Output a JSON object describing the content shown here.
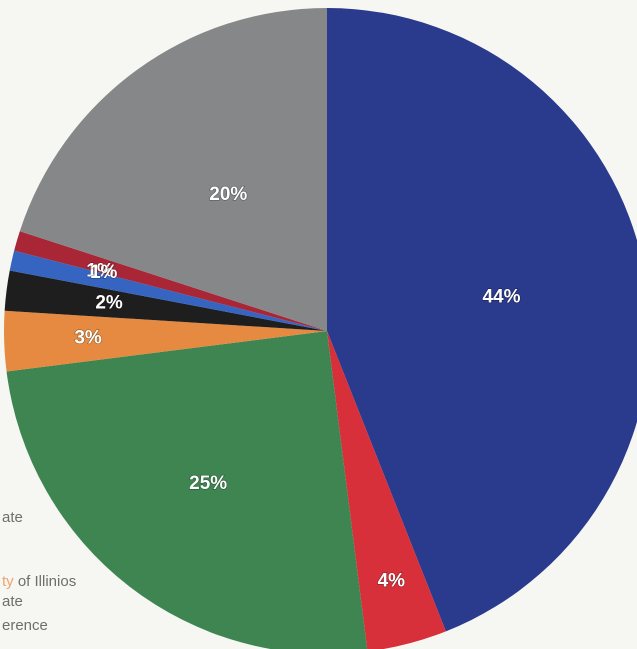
{
  "chart_data": {
    "type": "pie",
    "start_angle_deg": 0,
    "direction": "clockwise",
    "slices": [
      {
        "label": "44%",
        "value": 44,
        "color": "#2a3a8c"
      },
      {
        "label": "4%",
        "value": 4,
        "color": "#d8303a"
      },
      {
        "label": "25%",
        "value": 25,
        "color": "#3e8552"
      },
      {
        "label": "3%",
        "value": 3,
        "color": "#e58a40"
      },
      {
        "label": "2%",
        "value": 2,
        "color": "#1e1e1e"
      },
      {
        "label": "1%",
        "value": 1,
        "color": "#3565c0"
      },
      {
        "label": "1%",
        "value": 1,
        "color": "#a82636"
      },
      {
        "label": "20%",
        "value": 20,
        "color": "#858789"
      }
    ],
    "legend_fragments": [
      "ate",
      "ty of Illinios",
      "ate",
      "erence"
    ],
    "legend_highlight_color": "#f0a36a",
    "legend_placement": "bottom-left"
  }
}
